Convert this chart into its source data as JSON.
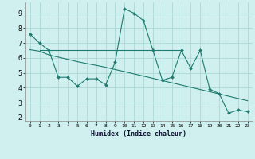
{
  "xlabel": "Humidex (Indice chaleur)",
  "bg_color": "#cff0ee",
  "grid_color": "#aad8d5",
  "line_color": "#1e7b70",
  "xlim": [
    -0.5,
    23.5
  ],
  "ylim": [
    1.8,
    9.7
  ],
  "yticks": [
    2,
    3,
    4,
    5,
    6,
    7,
    8,
    9
  ],
  "xticks": [
    0,
    1,
    2,
    3,
    4,
    5,
    6,
    7,
    8,
    9,
    10,
    11,
    12,
    13,
    14,
    15,
    16,
    17,
    18,
    19,
    20,
    21,
    22,
    23
  ],
  "line1_x": [
    0,
    1,
    2,
    3,
    4,
    5,
    6,
    7,
    8,
    9,
    10,
    11,
    12,
    13,
    14,
    15,
    16,
    17,
    18,
    19,
    20,
    21,
    22,
    23
  ],
  "line1_y": [
    7.6,
    7.0,
    6.5,
    4.7,
    4.7,
    4.1,
    4.6,
    4.6,
    4.2,
    5.7,
    9.3,
    9.0,
    8.5,
    6.5,
    4.5,
    4.7,
    6.5,
    5.3,
    6.5,
    3.9,
    3.6,
    2.3,
    2.5,
    2.4
  ],
  "line2_x": [
    1,
    16
  ],
  "line2_y": [
    6.5,
    6.5
  ],
  "line3_x": [
    0,
    1,
    2,
    3,
    4,
    5,
    6,
    7,
    8,
    9,
    10,
    11,
    12,
    13,
    14,
    15,
    16,
    17,
    18,
    19,
    20,
    21,
    22,
    23
  ],
  "line3_y": [
    6.55,
    6.45,
    6.2,
    6.05,
    5.9,
    5.75,
    5.62,
    5.5,
    5.37,
    5.22,
    5.08,
    4.93,
    4.78,
    4.63,
    4.48,
    4.33,
    4.18,
    4.03,
    3.88,
    3.73,
    3.58,
    3.43,
    3.28,
    3.13
  ]
}
